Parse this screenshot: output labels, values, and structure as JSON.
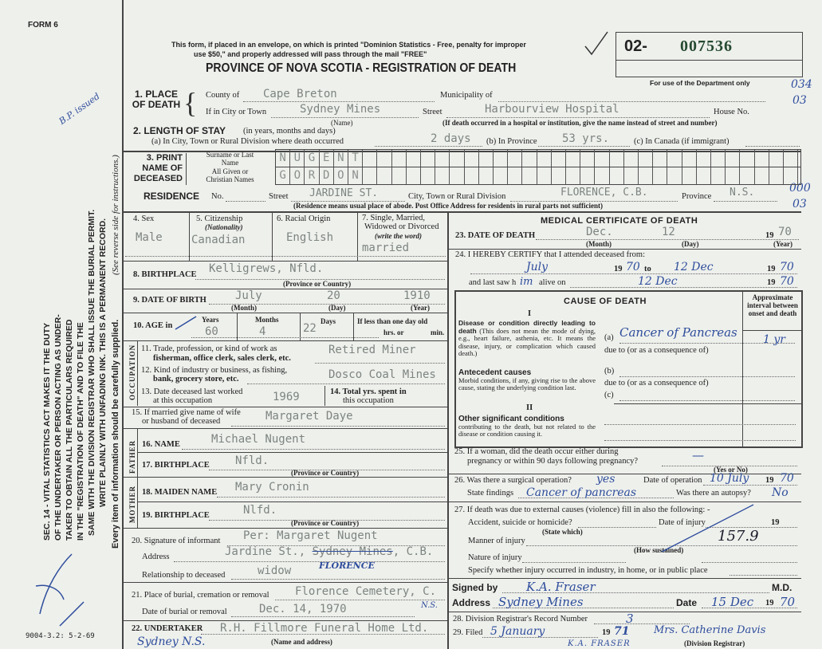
{
  "form_id": "FORM 6",
  "form_code": "9004-3.2: 5-2-69",
  "side_notice": {
    "lines": [
      "SEC. 14 - VITAL STATISTICS ACT MAKES IT THE DUTY",
      "OF THE UNDERTAKER OR PERSON ACTING AS UNDER-",
      "TAKER TO OBTAIN ALL THE PARTICULARS REQUIRED",
      "IN THE \"REGISTRATION OF DEATH\" AND TO FILE THE",
      "SAME WITH THE DIVISION REGISTRAR WHO SHALL ISSUE THE BURIAL PERMIT.",
      "WRITE PLAINLY WITH UNFADING INK. THIS IS A PERMANENT RECORD."
    ],
    "every_item": "Every item of information should be carefully supplied.",
    "reverse": "(See reverse side for instructions.)",
    "margin_note": "B.P. issued"
  },
  "header": {
    "mail_notice_1": "This form, if placed in an envelope, on which is printed \"Dominion Statistics - Free, penalty for improper",
    "mail_notice_2": "use $50,\" and properly addressed will pass through the mail \"FREE\"",
    "title": "PROVINCE OF NOVA SCOTIA - REGISTRATION OF DEATH",
    "reg_prefix": "02-",
    "reg_number": "007536",
    "dept_only": "For use of the Department only",
    "dept_codes": [
      "034",
      "03",
      "000",
      "03"
    ]
  },
  "place_of_death": {
    "label": "1. PLACE OF DEATH",
    "county_label": "County of",
    "county": "Cape Breton",
    "municipality_label": "Municipality of",
    "city_label": "If in City or Town",
    "city": "Sydney Mines",
    "name_note": "(Name)",
    "street_label": "Street",
    "street": "Harbourview Hospital",
    "house_label": "House No.",
    "hospital_note": "(If death occurred in a hospital or institution, give the name instead of street and number)"
  },
  "length_of_stay": {
    "label": "2. LENGTH OF STAY",
    "sub": "(in years, months and days)",
    "a_label": "(a) In City, Town or Rural Division where death occurred",
    "a": "2 days",
    "b_label": "(b) In Province",
    "b": "53 yrs.",
    "c_label": "(c) In Canada (if immigrant)"
  },
  "name": {
    "label": "3. PRINT NAME OF DECEASED",
    "surname_label": "Surname or Last Name",
    "surname": "NUGENT",
    "given_label": "All Given or Christian Names",
    "given": "GORDON"
  },
  "residence": {
    "label": "RESIDENCE",
    "no_label": "No.",
    "street_label": "Street",
    "street": "JARDINE ST.",
    "city_label": "City, Town or Rural Division",
    "city": "FLORENCE, C.B.",
    "province_label": "Province",
    "province": "N.S.",
    "note": "(Residence means usual place of abode. Post Office Address for residents in rural parts not sufficient)"
  },
  "personal": {
    "sex_label": "4. Sex",
    "sex": "Male",
    "citizenship_label": "5. Citizenship",
    "citizenship_sub": "(Nationality)",
    "citizenship": "Canadian",
    "racial_label": "6. Racial Origin",
    "racial": "English",
    "marital_label_1": "7. Single, Married,",
    "marital_label_2": "Widowed or Divorced",
    "marital_label_3": "(write the word)",
    "marital": "married",
    "birthplace_label": "8. BIRTHPLACE",
    "birthplace": "Kelligrews, Nfld.",
    "prov_country": "(Province or Country)",
    "dob_label": "9. DATE OF BIRTH",
    "dob_month": "July",
    "dob_day": "20",
    "dob_year": "1910",
    "month_note": "(Month)",
    "day_note": "(Day)",
    "year_note": "(Year)",
    "age_label": "10. AGE in",
    "years_label": "Years",
    "years": "60",
    "months_label": "Months",
    "months": "4",
    "days_label": "Days",
    "days": "22",
    "less_label": "If less than one day old",
    "hrs_label": "hrs. or",
    "min_label": "min."
  },
  "occupation": {
    "side": "OCCUPATION",
    "trade_label_1": "11. Trade, profession, or kind of work as",
    "trade_label_2": "fisherman, office clerk, sales clerk, etc.",
    "trade": "Retired Miner",
    "industry_label_1": "12. Kind of industry or business, as fishing,",
    "industry_label_2": "bank, grocery store, etc.",
    "industry": "Dosco Coal Mines",
    "last_worked_label_1": "13. Date deceased last worked",
    "last_worked_label_2": "at this occupation",
    "last_worked": "1969",
    "total_label_1": "14. Total yrs. spent in",
    "total_label_2": "this occupation"
  },
  "spouse": {
    "label_1": "15. If married give name of wife",
    "label_2": "or husband of deceased",
    "value": "Margaret Daye"
  },
  "father": {
    "side": "FATHER",
    "name_label": "16. NAME",
    "name": "Michael Nugent",
    "birthplace_label": "17. BIRTHPLACE",
    "birthplace": "Nfld."
  },
  "mother": {
    "side": "MOTHER",
    "maiden_label": "18. MAIDEN NAME",
    "maiden": "Mary Cronin",
    "birthplace_label": "19. BIRTHPLACE",
    "birthplace": "Nlfd."
  },
  "informant": {
    "sig_label": "20. Signature of informant",
    "sig": "Per: Margaret Nugent",
    "address_label": "Address",
    "address": "Jardine St.,",
    "address_struck": "Sydney Mines",
    "address_end": ", C.B.",
    "address_correction": "FLORENCE",
    "relationship_label": "Relationship to deceased",
    "relationship": "widow"
  },
  "burial": {
    "place_label": "21. Place of burial, cremation or removal",
    "place": "Florence Cemetery, C.",
    "place_note": "N.S.",
    "date_label": "Date of burial or removal",
    "date": "Dec. 14, 1970"
  },
  "undertaker": {
    "label": "22. UNDERTAKER",
    "value": "R.H. Fillmore Funeral Home Ltd.",
    "hand": "Sydney N.S.",
    "note": "(Name and address)"
  },
  "medical": {
    "title": "MEDICAL CERTIFICATE OF DEATH",
    "dod_label": "23. DATE OF DEATH",
    "dod_month": "Dec.",
    "dod_day": "12",
    "dod_year": "70",
    "certify_label": "24. I HEREBY CERTIFY that I attended deceased from:",
    "from": "July",
    "from_year": "70",
    "to_label": "to",
    "to": "12 Dec",
    "to_year": "70",
    "last_saw_label": "and last saw h",
    "last_saw_hand": "im",
    "alive_label": "alive on",
    "last_saw": "12 Dec",
    "last_saw_year": "70",
    "year_prefix": "19",
    "cause": {
      "title": "CAUSE OF DEATH",
      "roman_1": "I",
      "roman_2": "II",
      "interval_label": "Approximate interval between onset and death",
      "direct_head": "Disease or condition directly leading to death",
      "direct_text": "(This does not mean the mode of dying, e.g., heart failure, asthenia, etc. It means the disease, injury, or complication which caused death.)",
      "a_label": "(a)",
      "a": "Cancer of Pancreas",
      "a_interval": "1 yr",
      "due_to": "due to (or as a consequence of)",
      "antecedent_head": "Antecedent causes",
      "antecedent_text": "Morbid conditions, if any, giving rise to the above cause, stating the underlying condition last.",
      "b_label": "(b)",
      "c_label": "(c)",
      "other_head": "Other significant conditions",
      "other_text": "contributing to the death, but not related to the disease or condition causing it."
    },
    "q25_1": "25. If a woman, did the death occur either during",
    "q25_2": "pregnancy or within 90 days following pregnancy?",
    "q25": "—",
    "yes_no": "(Yes or No)",
    "q26_label": "26. Was there a surgical operation?",
    "q26": "yes",
    "op_date_label": "Date of operation",
    "op_date": "10 July",
    "op_year": "70",
    "findings_label": "State findings",
    "findings": "Cancer of pancreas",
    "autopsy_label": "Was there an autopsy?",
    "autopsy": "No",
    "q27": "27. If death was due to external causes (violence) fill in also the following: -",
    "accident_label": "Accident, suicide or homicide?",
    "state_which": "(State which)",
    "injury_date_label": "Date of injury",
    "manner_label": "Manner of injury",
    "manner_hand": "157.9",
    "how_sustained": "(How sustained)",
    "nature_label": "Nature of injury",
    "specify_label": "Specify whether injury occurred in industry, in home, or in public place",
    "signed_label": "Signed by",
    "signed": "K.A. Fraser",
    "md": "M.D.",
    "address_label": "Address",
    "address": "Sydney Mines",
    "date_label": "Date",
    "date": "15 Dec",
    "date_year": "70",
    "record_label": "28. Division Registrar's Record Number",
    "record": "3",
    "filed_label": "29. Filed",
    "filed": "5 January",
    "filed_year": "71",
    "registrar_sig": "Mrs. Catherine Davis",
    "registrar_note": "(Division Registrar)",
    "fraser_print": "K.A. FRASER"
  },
  "colors": {
    "paper": "#eef0ec",
    "ink_blue": "#2e4d9c",
    "typewriter": "#7d8480"
  }
}
